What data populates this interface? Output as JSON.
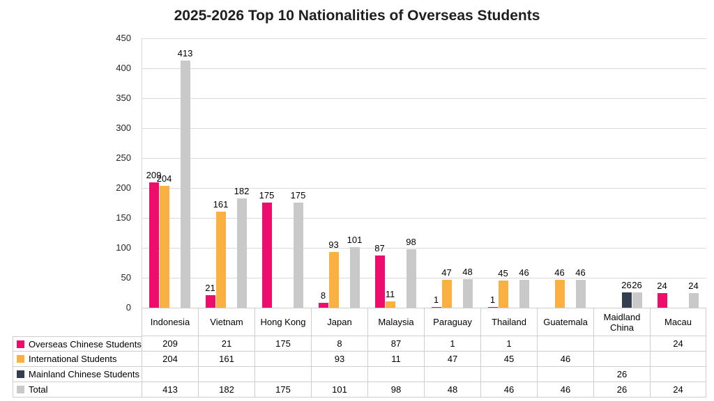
{
  "title": "2025-2026 Top 10 Nationalities of Overseas Students",
  "colors": {
    "grid": "#d9d9d9",
    "table_border": "#cfcdcd",
    "title_text": "#1f1f1f",
    "label_text": "#000000",
    "overseas_chinese": "#ee0d6d",
    "international": "#fbb142",
    "mainland_chinese": "#333f4f",
    "total": "#c9c9c9"
  },
  "chart_data": {
    "type": "bar",
    "title": "2025-2026 Top 10 Nationalities of Overseas Students",
    "categories": [
      "Indonesia",
      "Vietnam",
      "Hong Kong",
      "Japan",
      "Malaysia",
      "Paraguay",
      "Thailand",
      "Guatemala",
      "Maidland China",
      "Macau"
    ],
    "series": [
      {
        "name": "Overseas Chinese Students",
        "color": "#ee0d6d",
        "values": [
          209,
          21,
          175,
          8,
          87,
          1,
          1,
          null,
          null,
          24
        ]
      },
      {
        "name": "International Students",
        "color": "#fbb142",
        "values": [
          204,
          161,
          null,
          93,
          11,
          47,
          45,
          46,
          null,
          null
        ]
      },
      {
        "name": "Mainland Chinese Students",
        "color": "#333f4f",
        "values": [
          null,
          null,
          null,
          null,
          null,
          null,
          null,
          null,
          26,
          null
        ]
      },
      {
        "name": "Total",
        "color": "#c9c9c9",
        "values": [
          413,
          182,
          175,
          101,
          98,
          48,
          46,
          46,
          26,
          24
        ]
      }
    ],
    "ylim": [
      0,
      450
    ],
    "ytick_step": 50,
    "yticks": [
      0,
      50,
      100,
      150,
      200,
      250,
      300,
      350,
      400,
      450
    ],
    "grid": true,
    "data_labels": true,
    "legend_position": "data-table-left",
    "xlabel": "",
    "ylabel": ""
  }
}
